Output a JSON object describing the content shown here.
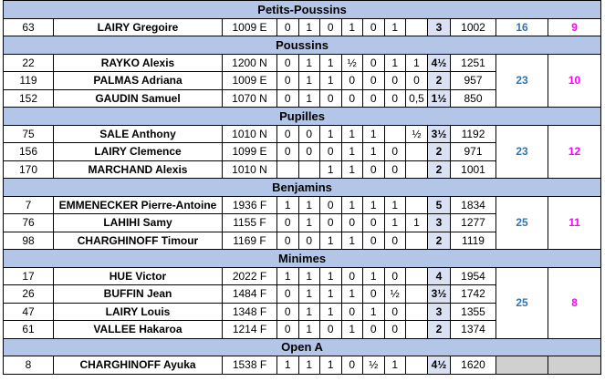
{
  "sections": [
    {
      "title": "Petits-Poussins",
      "team": 16,
      "points": 9,
      "rows": [
        {
          "cells": [
            63,
            "LAIRY Gregoire",
            "1009 E",
            0,
            1,
            0,
            1,
            0,
            1,
            null,
            3,
            1002
          ]
        }
      ]
    },
    {
      "title": "Poussins",
      "team": 23,
      "points": 10,
      "rows": [
        {
          "cells": [
            22,
            "RAYKO Alexis",
            "1200 N",
            0,
            1,
            1,
            "½",
            0,
            1,
            1,
            "4½",
            1251
          ]
        },
        {
          "cells": [
            119,
            "PALMAS Adriana",
            "1009 E",
            0,
            1,
            1,
            0,
            0,
            0,
            0,
            2,
            957
          ]
        },
        {
          "cells": [
            152,
            "GAUDIN Samuel",
            "1070 N",
            0,
            1,
            0,
            0,
            0,
            0,
            "0,5",
            "1½",
            850
          ]
        }
      ]
    },
    {
      "title": "Pupilles",
      "team": 23,
      "points": 12,
      "rows": [
        {
          "cells": [
            75,
            "SALE Anthony",
            "1010 N",
            0,
            0,
            1,
            1,
            1,
            null,
            "½",
            "3½",
            1192
          ]
        },
        {
          "cells": [
            156,
            "LAIRY Clemence",
            "1099 E",
            0,
            0,
            0,
            1,
            1,
            0,
            null,
            2,
            971
          ]
        },
        {
          "cells": [
            170,
            "MARCHAND Alexis",
            "1010 N",
            null,
            null,
            1,
            1,
            0,
            0,
            null,
            2,
            1001
          ]
        }
      ]
    },
    {
      "title": "Benjamins",
      "team": 25,
      "points": 11,
      "rows": [
        {
          "cells": [
            7,
            "EMMENECKER Pierre-Antoine",
            "1936 F",
            1,
            1,
            0,
            1,
            1,
            1,
            null,
            5,
            1834
          ]
        },
        {
          "cells": [
            76,
            "LAHIHI Samy",
            "1155 F",
            0,
            1,
            0,
            0,
            0,
            1,
            1,
            3,
            1277
          ]
        },
        {
          "cells": [
            98,
            "CHARGHINOFF Timour",
            "1169 F",
            0,
            0,
            1,
            1,
            0,
            0,
            null,
            2,
            1119
          ]
        }
      ]
    },
    {
      "title": "Minimes",
      "team": 25,
      "points": 8,
      "rows": [
        {
          "cells": [
            17,
            "HUE Victor",
            "2022 F",
            1,
            1,
            1,
            0,
            1,
            0,
            null,
            4,
            1954
          ]
        },
        {
          "cells": [
            26,
            "BUFFIN Jean",
            "1484 F",
            0,
            1,
            1,
            1,
            0,
            "½",
            null,
            "3½",
            1742
          ]
        },
        {
          "cells": [
            47,
            "LAIRY Louis",
            "1348 F",
            0,
            1,
            1,
            0,
            1,
            0,
            null,
            3,
            1355
          ]
        },
        {
          "cells": [
            61,
            "VALLEE Hakaroa",
            "1214 F",
            0,
            1,
            0,
            1,
            0,
            0,
            null,
            2,
            1374
          ]
        }
      ]
    },
    {
      "title": "Open A",
      "rows": [
        {
          "cells": [
            8,
            "CHARGHINOFF Ayuka",
            "1538 F",
            1,
            1,
            1,
            0,
            "½",
            1,
            null,
            "4½",
            1620
          ]
        }
      ]
    }
  ]
}
